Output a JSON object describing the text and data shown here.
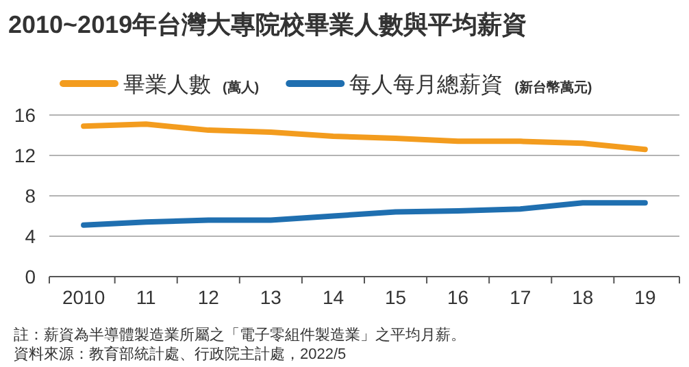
{
  "chart_data": {
    "type": "line",
    "title": "2010~2019年台灣大專院校畢業人數與平均薪資",
    "categories": [
      "2010",
      "11",
      "12",
      "13",
      "14",
      "15",
      "16",
      "17",
      "18",
      "19"
    ],
    "series": [
      {
        "name": "畢業人數 **(萬人)**",
        "color": "#f39c1e",
        "values": [
          14.9,
          15.1,
          14.5,
          14.3,
          13.9,
          13.7,
          13.4,
          13.4,
          13.2,
          12.6
        ]
      },
      {
        "name": "每人每月總薪資 **(新台幣萬元)**",
        "color": "#1f6fb0",
        "values": [
          5.1,
          5.4,
          5.6,
          5.6,
          6.0,
          6.4,
          6.5,
          6.7,
          7.3,
          7.3
        ]
      }
    ],
    "ylim": [
      0,
      16
    ],
    "yticks": [
      0,
      4,
      8,
      12,
      16
    ],
    "grid": "y",
    "legend": "top",
    "marker": "none",
    "line_style": "solid",
    "annotations": [
      "註：薪資為半導體製造業所屬之「電子零組件製造業」之平均月薪。",
      "資料來源：教育部統計處、行政院主計處，2022/5"
    ]
  }
}
